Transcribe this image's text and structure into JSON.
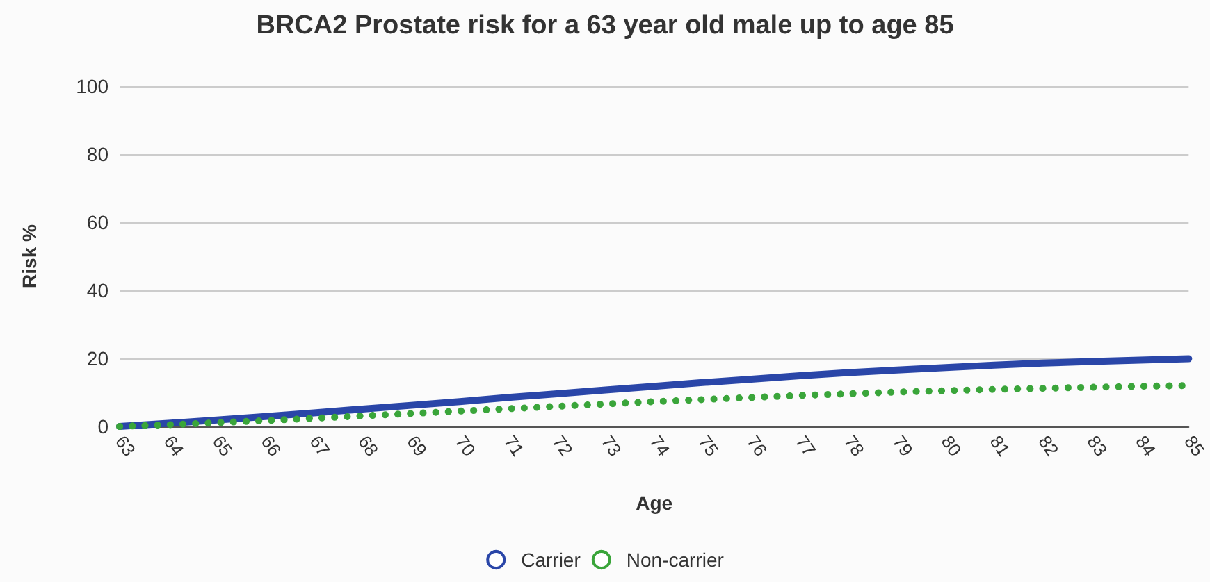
{
  "chart_data": {
    "type": "line",
    "title": "BRCA2 Prostate risk for a 63 year old male up to age 85",
    "xlabel": "Age",
    "ylabel": "Risk %",
    "categories": [
      "63",
      "64",
      "65",
      "66",
      "67",
      "68",
      "69",
      "70",
      "71",
      "72",
      "73",
      "74",
      "75",
      "76",
      "77",
      "78",
      "79",
      "80",
      "81",
      "82",
      "83",
      "84",
      "85"
    ],
    "series": [
      {
        "name": "Carrier",
        "color": "#2a46a8",
        "line_style": "solid",
        "values": [
          0,
          0.9,
          1.9,
          2.9,
          4,
          5.1,
          6.2,
          7.3,
          8.5,
          9.6,
          10.7,
          11.8,
          12.9,
          13.9,
          14.9,
          15.8,
          16.6,
          17.3,
          18,
          18.6,
          19.1,
          19.5,
          19.9
        ]
      },
      {
        "name": "Non-carrier",
        "color": "#3aa53a",
        "line_style": "dotted",
        "values": [
          0,
          0.5,
          1.1,
          1.7,
          2.4,
          3.1,
          3.8,
          4.5,
          5.2,
          5.9,
          6.6,
          7.3,
          7.9,
          8.5,
          9.1,
          9.6,
          10.1,
          10.5,
          10.9,
          11.2,
          11.5,
          11.8,
          12
        ]
      }
    ],
    "ylim": [
      0,
      100
    ],
    "yticks": [
      0,
      20,
      40,
      60,
      80,
      100
    ],
    "grid": "y",
    "legend": "bottom",
    "marker": "none"
  }
}
